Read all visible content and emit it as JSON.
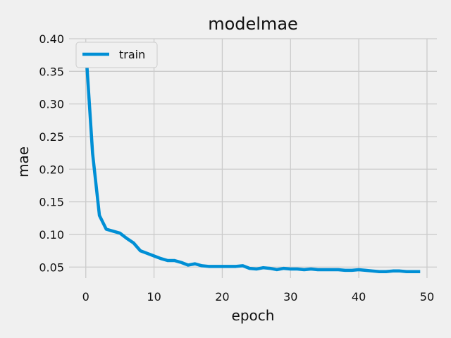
{
  "chart_data": {
    "type": "line",
    "title": "modelmae",
    "xlabel": "epoch",
    "ylabel": "mae",
    "xlim": [
      -2.45,
      51.45
    ],
    "ylim": [
      0.033,
      0.4
    ],
    "x_ticks": [
      0,
      10,
      20,
      30,
      40,
      50
    ],
    "y_ticks": [
      0.05,
      0.1,
      0.15,
      0.2,
      0.25,
      0.3,
      0.35,
      0.4
    ],
    "y_tick_labels": [
      "0.05",
      "0.10",
      "0.15",
      "0.20",
      "0.25",
      "0.30",
      "0.35",
      "0.40"
    ],
    "grid": true,
    "legend_position": "top-left",
    "series": [
      {
        "name": "train",
        "color": "#008fd5",
        "x": [
          0,
          1,
          2,
          3,
          4,
          5,
          6,
          7,
          8,
          9,
          10,
          11,
          12,
          13,
          14,
          15,
          16,
          17,
          18,
          19,
          20,
          21,
          22,
          23,
          24,
          25,
          26,
          27,
          28,
          29,
          30,
          31,
          32,
          33,
          34,
          35,
          36,
          37,
          38,
          39,
          40,
          41,
          42,
          43,
          44,
          45,
          46,
          47,
          48,
          49
        ],
        "y": [
          0.385,
          0.224,
          0.129,
          0.108,
          0.105,
          0.102,
          0.094,
          0.087,
          0.075,
          0.071,
          0.067,
          0.063,
          0.06,
          0.06,
          0.057,
          0.053,
          0.055,
          0.052,
          0.051,
          0.051,
          0.051,
          0.051,
          0.051,
          0.052,
          0.048,
          0.047,
          0.049,
          0.048,
          0.046,
          0.048,
          0.047,
          0.047,
          0.046,
          0.047,
          0.046,
          0.046,
          0.046,
          0.046,
          0.045,
          0.045,
          0.046,
          0.045,
          0.044,
          0.043,
          0.043,
          0.044,
          0.044,
          0.043,
          0.043,
          0.043
        ]
      }
    ]
  }
}
